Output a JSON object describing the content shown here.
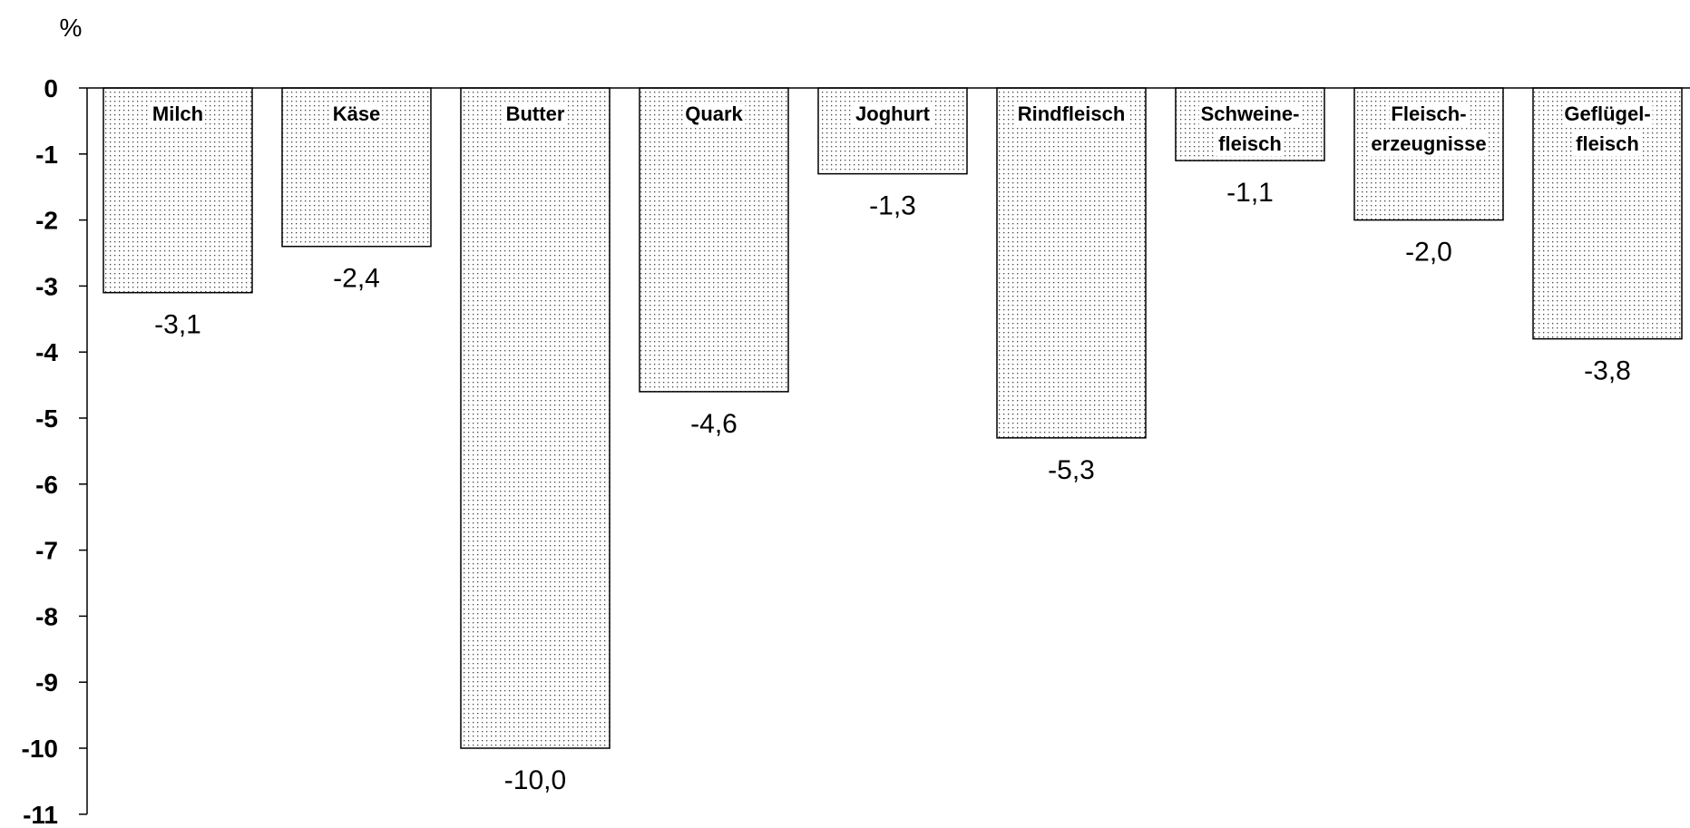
{
  "chart_data": {
    "type": "bar",
    "unit_label": "%",
    "categories": [
      [
        "Milch"
      ],
      [
        "Käse"
      ],
      [
        "Butter"
      ],
      [
        "Quark"
      ],
      [
        "Joghurt"
      ],
      [
        "Rindfleisch"
      ],
      [
        "Schweine-",
        "fleisch"
      ],
      [
        "Fleisch-",
        "erzeugnisse"
      ],
      [
        "Geflügel-",
        "fleisch"
      ]
    ],
    "values": [
      -3.1,
      -2.4,
      -10.0,
      -4.6,
      -1.3,
      -5.3,
      -1.1,
      -2.0,
      -3.8
    ],
    "value_labels": [
      "-3,1",
      "-2,4",
      "-10,0",
      "-4,6",
      "-1,3",
      "-5,3",
      "-1,1",
      "-2,0",
      "-3,8"
    ],
    "ylim": [
      -11,
      0
    ],
    "yticks": [
      "0",
      "-1",
      "-2",
      "-3",
      "-4",
      "-5",
      "-6",
      "-7",
      "-8",
      "-9",
      "-10",
      "-11"
    ],
    "grid": false,
    "legend": "none",
    "bar_fill": "#ffffff",
    "bar_dot_color": "#444444",
    "bar_stroke": "#000000"
  }
}
